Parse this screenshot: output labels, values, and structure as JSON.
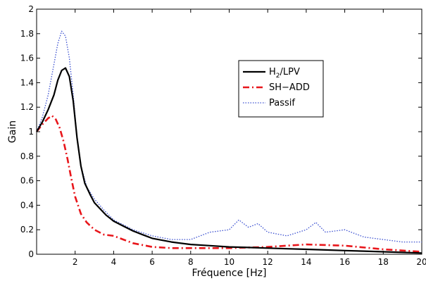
{
  "chart_data": {
    "type": "line",
    "title": "",
    "xlabel": "Fréquence [Hz]",
    "ylabel": "Gain",
    "xlim": [
      0,
      20
    ],
    "ylim": [
      0,
      2
    ],
    "xticks": [
      2,
      4,
      6,
      8,
      10,
      12,
      14,
      16,
      18,
      20
    ],
    "yticks": [
      0,
      0.2,
      0.4,
      0.6,
      0.8,
      1,
      1.2,
      1.4,
      1.6,
      1.8,
      2
    ],
    "grid": false,
    "legend_position": "upper-center-right",
    "series": [
      {
        "name": "H2/LPV",
        "label_main": "H",
        "label_sub": "2",
        "label_rest": "/LPV",
        "color": "#000000",
        "style": "solid",
        "x": [
          0,
          0.3,
          0.6,
          0.9,
          1.1,
          1.3,
          1.5,
          1.7,
          1.9,
          2.1,
          2.3,
          2.5,
          2.8,
          3.0,
          3.3,
          3.6,
          4.0,
          4.5,
          5.0,
          5.5,
          6.0,
          7.0,
          8.0,
          9.0,
          10.0,
          11.0,
          12.0,
          13.0,
          14.0,
          15.0,
          16.0,
          17.0,
          18.0,
          19.0,
          20.0
        ],
        "y": [
          1.0,
          1.08,
          1.18,
          1.3,
          1.42,
          1.5,
          1.52,
          1.45,
          1.25,
          0.95,
          0.72,
          0.58,
          0.48,
          0.42,
          0.37,
          0.32,
          0.27,
          0.23,
          0.19,
          0.16,
          0.13,
          0.1,
          0.08,
          0.07,
          0.06,
          0.055,
          0.05,
          0.045,
          0.04,
          0.035,
          0.03,
          0.025,
          0.02,
          0.015,
          0.01
        ]
      },
      {
        "name": "SH−ADD",
        "label_main": "SH−ADD",
        "label_sub": "",
        "label_rest": "",
        "color": "#e8161b",
        "style": "dashdot",
        "x": [
          0,
          0.3,
          0.6,
          0.8,
          1.0,
          1.2,
          1.4,
          1.6,
          1.8,
          2.0,
          2.3,
          2.6,
          3.0,
          3.5,
          4.0,
          4.5,
          5.0,
          6.0,
          7.0,
          8.0,
          10.0,
          12.0,
          14.0,
          16.0,
          18.0,
          20.0
        ],
        "y": [
          1.0,
          1.06,
          1.11,
          1.13,
          1.1,
          1.03,
          0.92,
          0.78,
          0.62,
          0.47,
          0.33,
          0.26,
          0.2,
          0.16,
          0.15,
          0.12,
          0.09,
          0.06,
          0.05,
          0.05,
          0.05,
          0.06,
          0.08,
          0.07,
          0.04,
          0.02
        ]
      },
      {
        "name": "Passif",
        "label_main": "Passif",
        "label_sub": "",
        "label_rest": "",
        "color": "#3a4fd0",
        "style": "dotted",
        "x": [
          0,
          0.3,
          0.6,
          0.9,
          1.1,
          1.3,
          1.5,
          1.7,
          1.9,
          2.1,
          2.3,
          2.6,
          3.0,
          3.5,
          4.0,
          4.5,
          5.0,
          6.0,
          7.0,
          8.0,
          9.0,
          10.0,
          10.5,
          11.0,
          11.5,
          12.0,
          13.0,
          14.0,
          14.5,
          15.0,
          16.0,
          17.0,
          18.0,
          19.0,
          20.0
        ],
        "y": [
          1.0,
          1.12,
          1.3,
          1.55,
          1.72,
          1.82,
          1.78,
          1.6,
          1.3,
          0.95,
          0.72,
          0.55,
          0.45,
          0.36,
          0.28,
          0.24,
          0.2,
          0.15,
          0.12,
          0.12,
          0.18,
          0.2,
          0.28,
          0.22,
          0.25,
          0.18,
          0.15,
          0.2,
          0.26,
          0.18,
          0.2,
          0.14,
          0.12,
          0.1,
          0.1
        ]
      }
    ]
  }
}
